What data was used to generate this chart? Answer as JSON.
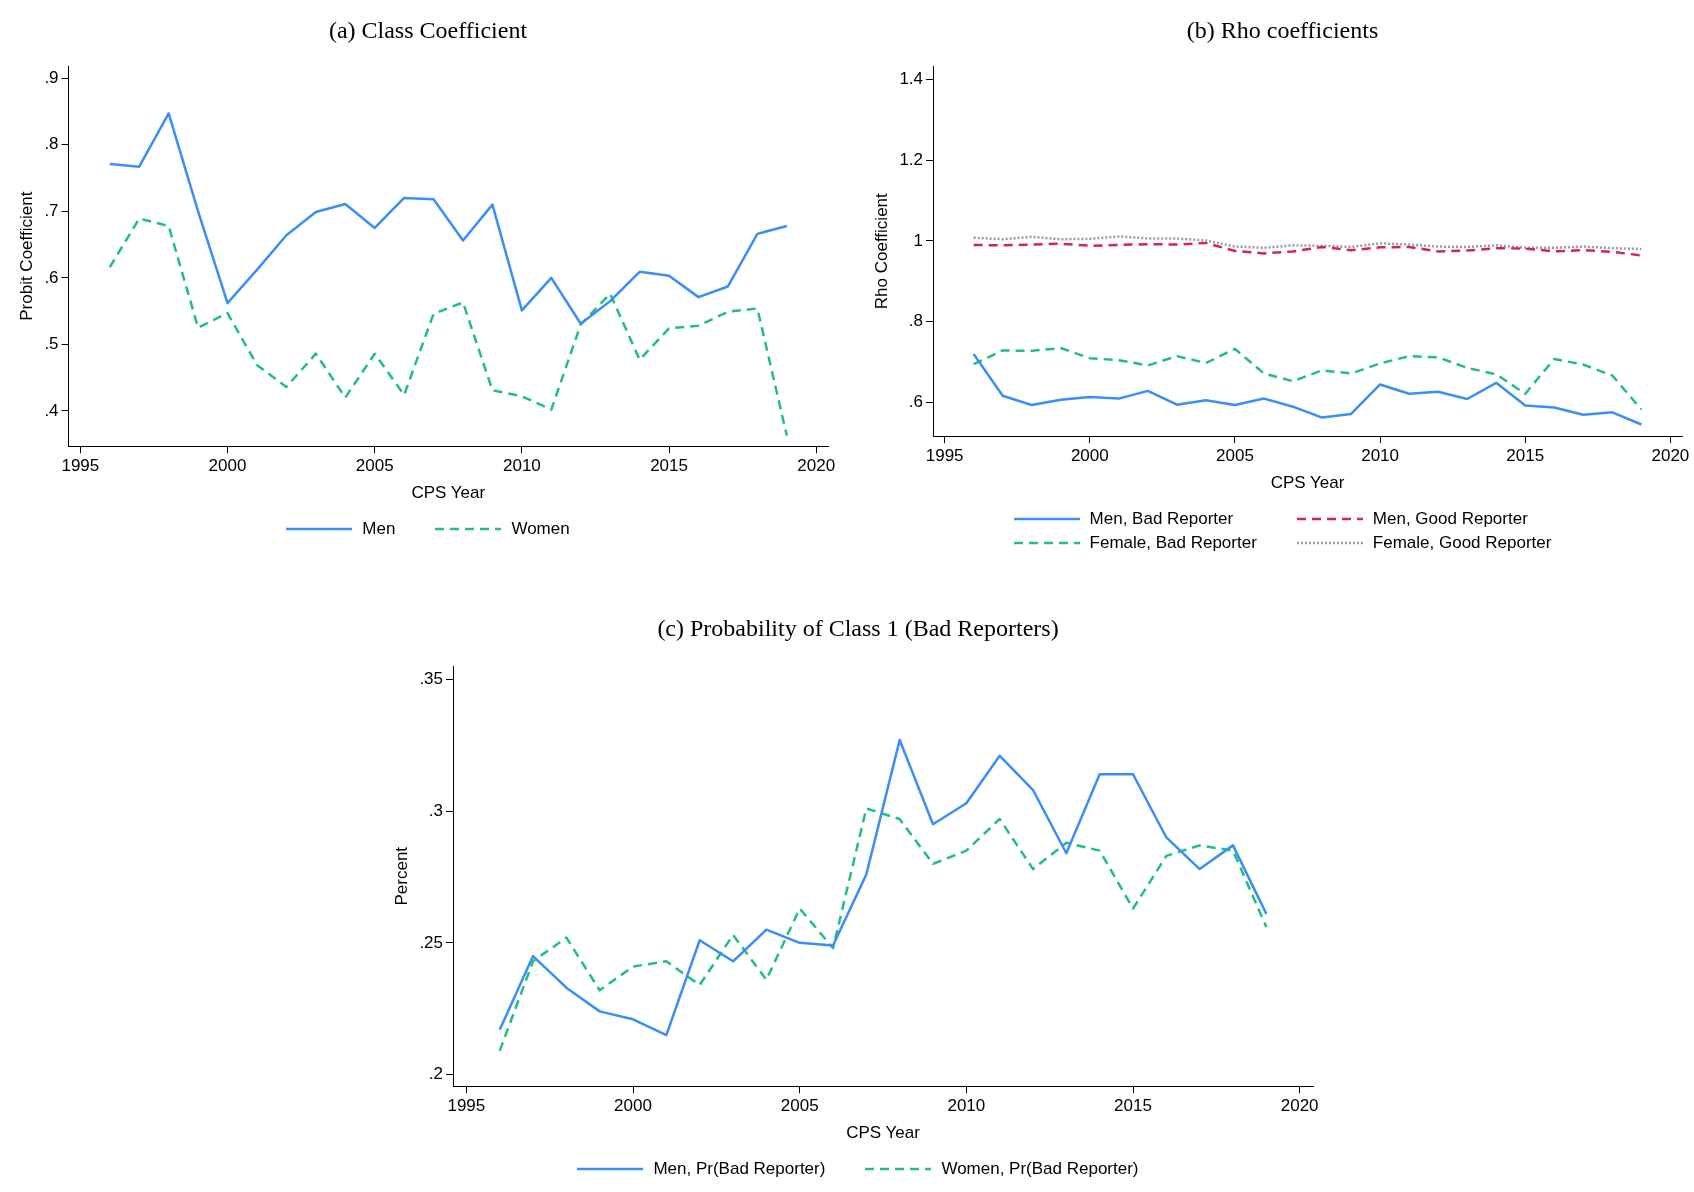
{
  "chart_data": [
    {
      "type": "line",
      "title": "(a) Class Coefficient",
      "xlabel": "CPS Year",
      "ylabel": "Probit Coefficient",
      "legend": "bottom",
      "x": [
        1996,
        1997,
        1998,
        1999,
        2000,
        2001,
        2002,
        2003,
        2004,
        2005,
        2006,
        2007,
        2008,
        2009,
        2010,
        2011,
        2012,
        2013,
        2014,
        2015,
        2016,
        2017,
        2018,
        2019
      ],
      "series": [
        {
          "name": "Men",
          "color": "#3a8ef6",
          "line_style": "solid",
          "values": [
            0.771,
            0.767,
            0.847,
            0.7,
            0.562,
            0.612,
            0.664,
            0.699,
            0.711,
            0.675,
            0.72,
            0.718,
            0.656,
            0.71,
            0.551,
            0.6,
            0.531,
            0.565,
            0.609,
            0.603,
            0.571,
            0.587,
            0.666,
            0.678
          ]
        },
        {
          "name": "Women",
          "color": "#1fbf7f",
          "line_style": "dashed",
          "values": [
            0.616,
            0.689,
            0.678,
            0.525,
            0.547,
            0.469,
            0.436,
            0.486,
            0.42,
            0.486,
            0.424,
            0.546,
            0.563,
            0.431,
            0.422,
            0.402,
            0.53,
            0.576,
            0.477,
            0.524,
            0.528,
            0.549,
            0.554,
            0.363
          ]
        }
      ],
      "xlim": [
        1994.6,
        2020.4
      ],
      "xticks": [
        1995,
        2000,
        2005,
        2010,
        2015,
        2020
      ],
      "ylim": [
        0.347,
        0.918
      ],
      "yticks": [
        {
          "value": 0.4,
          "label": ".4"
        },
        {
          "value": 0.5,
          "label": ".5"
        },
        {
          "value": 0.6,
          "label": ".6"
        },
        {
          "value": 0.7,
          "label": ".7"
        },
        {
          "value": 0.8,
          "label": ".8"
        },
        {
          "value": 0.9,
          "label": ".9"
        }
      ]
    },
    {
      "type": "line",
      "title": "(b) Rho coefficients",
      "xlabel": "CPS Year",
      "ylabel": "Rho Coefficient",
      "legend": "bottom",
      "x": [
        1996,
        1997,
        1998,
        1999,
        2000,
        2001,
        2002,
        2003,
        2004,
        2005,
        2006,
        2007,
        2008,
        2009,
        2010,
        2011,
        2012,
        2013,
        2014,
        2015,
        2016,
        2017,
        2018,
        2019
      ],
      "series": [
        {
          "name": "Men, Bad Reporter",
          "color": "#3a8ef6",
          "line_style": "solid",
          "values": [
            0.72,
            0.617,
            0.594,
            0.607,
            0.614,
            0.61,
            0.629,
            0.595,
            0.606,
            0.594,
            0.61,
            0.59,
            0.563,
            0.572,
            0.645,
            0.622,
            0.627,
            0.609,
            0.649,
            0.593,
            0.588,
            0.57,
            0.576,
            0.546
          ]
        },
        {
          "name": "Men, Good Reporter",
          "color": "#d6225b",
          "line_style": "dashed",
          "values": [
            0.99,
            0.989,
            0.991,
            0.993,
            0.988,
            0.99,
            0.992,
            0.991,
            0.995,
            0.975,
            0.969,
            0.974,
            0.985,
            0.977,
            0.984,
            0.985,
            0.974,
            0.976,
            0.982,
            0.981,
            0.974,
            0.977,
            0.973,
            0.964
          ]
        },
        {
          "name": "Female, Bad Reporter",
          "color": "#1fbf7f",
          "line_style": "dashed",
          "values": [
            0.695,
            0.729,
            0.728,
            0.735,
            0.71,
            0.705,
            0.692,
            0.715,
            0.698,
            0.733,
            0.672,
            0.653,
            0.68,
            0.672,
            0.697,
            0.715,
            0.712,
            0.686,
            0.67,
            0.622,
            0.708,
            0.694,
            0.667,
            0.583
          ]
        },
        {
          "name": "Female, Good Reporter",
          "color": "#9a9a9a",
          "line_style": "dotted",
          "values": [
            1.008,
            1.004,
            1.01,
            1.004,
            1.005,
            1.011,
            1.006,
            1.006,
            1.001,
            0.986,
            0.983,
            0.989,
            0.988,
            0.985,
            0.994,
            0.991,
            0.986,
            0.985,
            0.989,
            0.983,
            0.983,
            0.986,
            0.982,
            0.98
          ]
        }
      ],
      "xlim": [
        1994.6,
        2020.4
      ],
      "xticks": [
        1995,
        2000,
        2005,
        2010,
        2015,
        2020
      ],
      "ylim": [
        0.517,
        1.432
      ],
      "yticks": [
        {
          "value": 0.6,
          "label": ".6"
        },
        {
          "value": 0.8,
          "label": ".8"
        },
        1,
        1.2,
        1.4
      ]
    },
    {
      "type": "line",
      "title": "(c) Probability of Class 1 (Bad Reporters)",
      "xlabel": "CPS Year",
      "ylabel": "Percent",
      "legend": "bottom",
      "x": [
        1996,
        1997,
        1998,
        1999,
        2000,
        2001,
        2002,
        2003,
        2004,
        2005,
        2006,
        2007,
        2008,
        2009,
        2010,
        2011,
        2012,
        2013,
        2014,
        2015,
        2016,
        2017,
        2018,
        2019
      ],
      "series": [
        {
          "name": "Men, Pr(Bad Reporter)",
          "color": "#3a8ef6",
          "line_style": "solid",
          "values": [
            0.217,
            0.245,
            0.233,
            0.224,
            0.221,
            0.215,
            0.251,
            0.243,
            0.255,
            0.25,
            0.249,
            0.276,
            0.327,
            0.295,
            0.303,
            0.321,
            0.308,
            0.284,
            0.314,
            0.314,
            0.29,
            0.278,
            0.287,
            0.261
          ]
        },
        {
          "name": "Women, Pr(Bad Reporter)",
          "color": "#1fbf7f",
          "line_style": "dashed",
          "values": [
            0.209,
            0.243,
            0.252,
            0.232,
            0.241,
            0.243,
            0.234,
            0.253,
            0.236,
            0.263,
            0.248,
            0.301,
            0.297,
            0.28,
            0.285,
            0.297,
            0.278,
            0.288,
            0.285,
            0.263,
            0.283,
            0.287,
            0.285,
            0.256
          ]
        }
      ],
      "xlim": [
        1994.6,
        2020.4
      ],
      "xticks": [
        1995,
        2000,
        2005,
        2010,
        2015,
        2020
      ],
      "ylim": [
        0.1956,
        0.355
      ],
      "yticks": [
        {
          "value": 0.2,
          "label": ".2"
        },
        {
          "value": 0.25,
          "label": ".25"
        },
        {
          "value": 0.3,
          "label": ".3"
        },
        {
          "value": 0.35,
          "label": ".35"
        }
      ]
    }
  ]
}
